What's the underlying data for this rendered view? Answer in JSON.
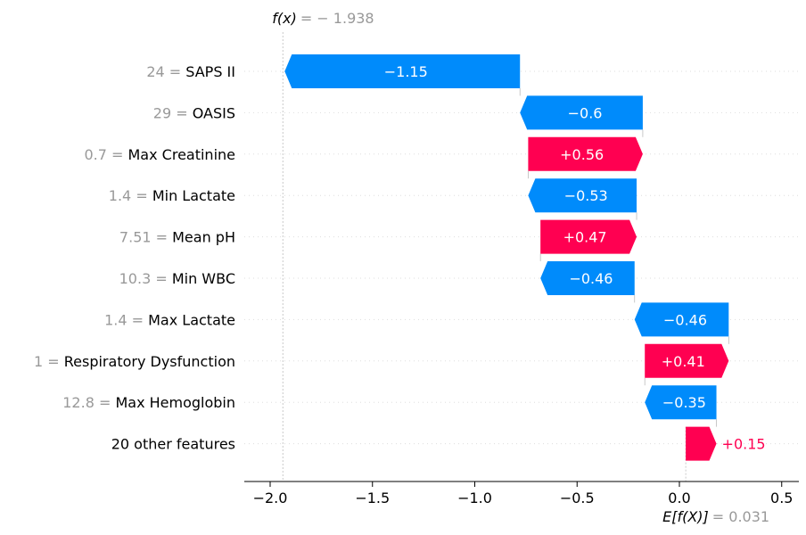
{
  "chart_data": {
    "type": "bar",
    "subtype": "shap-waterfall",
    "base_value": 0.031,
    "final_value": -1.938,
    "base_label": "E[f(X)]",
    "base_value_text": "= 0.031",
    "final_label": "f(x)",
    "final_value_text": "= − 1.938",
    "xlim": [
      -2.08,
      0.56
    ],
    "xticks": [
      -2.0,
      -1.5,
      -1.0,
      -0.5,
      0.0,
      0.5
    ],
    "xtick_labels": [
      "−2.0",
      "−1.5",
      "−1.0",
      "−0.5",
      "0.0",
      "0.5"
    ],
    "colors": {
      "positive": "#ff0051",
      "negative": "#008bfb",
      "feature_value": "#999999"
    },
    "features": [
      {
        "value": "24",
        "name": "SAPS II",
        "contribution": -1.15,
        "label": "−1.15"
      },
      {
        "value": "29",
        "name": "OASIS",
        "contribution": -0.6,
        "label": "−0.6"
      },
      {
        "value": "0.7",
        "name": "Max Creatinine",
        "contribution": 0.56,
        "label": "+0.56"
      },
      {
        "value": "1.4",
        "name": "Min Lactate",
        "contribution": -0.53,
        "label": "−0.53"
      },
      {
        "value": "7.51",
        "name": "Mean pH",
        "contribution": 0.47,
        "label": "+0.47"
      },
      {
        "value": "10.3",
        "name": "Min WBC",
        "contribution": -0.46,
        "label": "−0.46"
      },
      {
        "value": "1.4",
        "name": "Max Lactate",
        "contribution": -0.46,
        "label": "−0.46"
      },
      {
        "value": "1",
        "name": "Respiratory Dysfunction",
        "contribution": 0.41,
        "label": "+0.41"
      },
      {
        "value": "12.8",
        "name": "Max Hemoglobin",
        "contribution": -0.35,
        "label": "−0.35"
      },
      {
        "value": "",
        "name": "20 other features",
        "contribution": 0.15,
        "label": "+0.15"
      }
    ]
  }
}
